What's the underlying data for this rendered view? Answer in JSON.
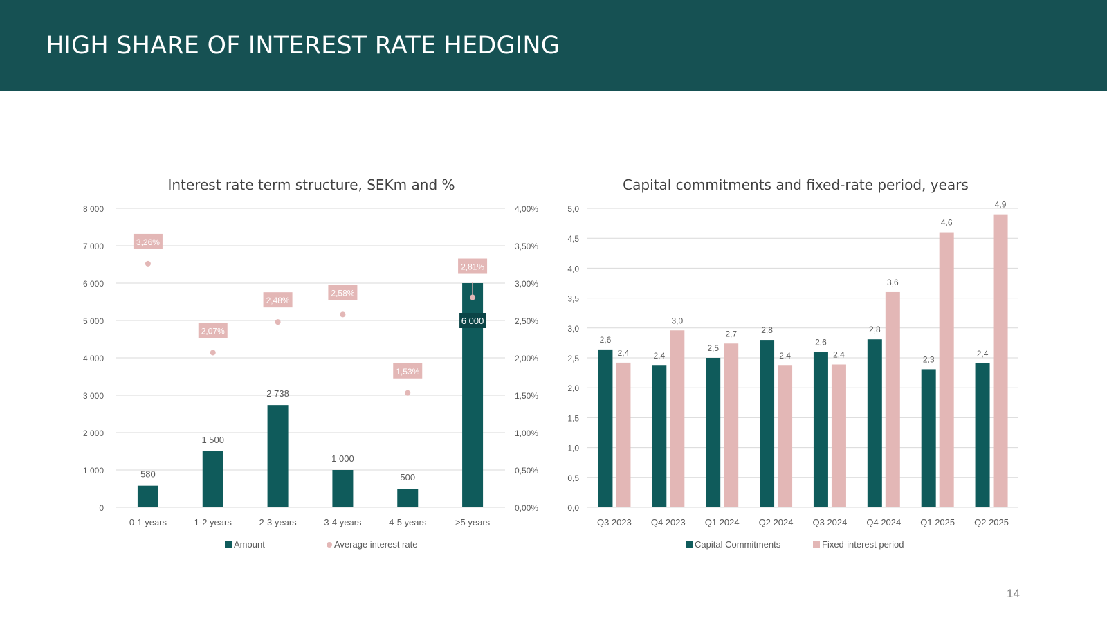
{
  "slide": {
    "title": "HIGH SHARE OF INTEREST RATE HEDGING",
    "page_number": "14"
  },
  "colors": {
    "header_bg": "#165153",
    "amount": "#0f5b5b",
    "rate": "#e3b7b6",
    "grid": "#d9d9d9",
    "axis_text": "#595959"
  },
  "chart_data": [
    {
      "type": "bar",
      "title": "Interest rate term structure, SEKm and %",
      "categories": [
        "0-1 years",
        "1-2 years",
        "2-3 years",
        "3-4 years",
        "4-5 years",
        ">5 years"
      ],
      "series": [
        {
          "name": "Amount",
          "type": "bar",
          "axis": "left",
          "values": [
            580,
            1500,
            2738,
            1000,
            500,
            6000
          ],
          "labels": [
            "580",
            "1 500",
            "2 738",
            "1 000",
            "500",
            "6 000"
          ]
        },
        {
          "name": "Average interest rate",
          "type": "scatter",
          "axis": "right",
          "values": [
            3.26,
            2.07,
            2.48,
            2.58,
            1.53,
            2.81
          ],
          "labels": [
            "3,26%",
            "2,07%",
            "2,48%",
            "2,58%",
            "1,53%",
            "2,81%"
          ]
        }
      ],
      "ylim_left": [
        0,
        8000
      ],
      "yticks_left": [
        "0",
        "1 000",
        "2 000",
        "3 000",
        "4 000",
        "5 000",
        "6 000",
        "7 000",
        "8 000"
      ],
      "ylim_right": [
        0,
        4
      ],
      "yticks_right": [
        "0,00%",
        "0,50%",
        "1,00%",
        "1,50%",
        "2,00%",
        "2,50%",
        "3,00%",
        "3,50%",
        "4,00%"
      ],
      "grid": true,
      "legend": "bottom"
    },
    {
      "type": "bar",
      "title": "Capital commitments and fixed-rate period, years",
      "categories": [
        "Q3 2023",
        "Q4 2023",
        "Q1 2024",
        "Q2 2024",
        "Q3 2024",
        "Q4 2024",
        "Q1 2025",
        "Q2 2025"
      ],
      "series": [
        {
          "name": "Capital Commitments",
          "values": [
            2.64,
            2.37,
            2.5,
            2.8,
            2.6,
            2.81,
            2.31,
            2.41
          ],
          "labels": [
            "2,6",
            "2,4",
            "2,5",
            "2,8",
            "2,6",
            "2,8",
            "2,3",
            "2,4"
          ]
        },
        {
          "name": "Fixed-interest period",
          "values": [
            2.42,
            2.96,
            2.74,
            2.37,
            2.39,
            3.6,
            4.6,
            4.9
          ],
          "labels": [
            "2,4",
            "3,0",
            "2,7",
            "2,4",
            "2,4",
            "3,6",
            "4,6",
            "4,9"
          ]
        }
      ],
      "ylim": [
        0,
        5
      ],
      "yticks": [
        "0,0",
        "0,5",
        "1,0",
        "1,5",
        "2,0",
        "2,5",
        "3,0",
        "3,5",
        "4,0",
        "4,5",
        "5,0"
      ],
      "grid": true,
      "legend": "bottom"
    }
  ]
}
